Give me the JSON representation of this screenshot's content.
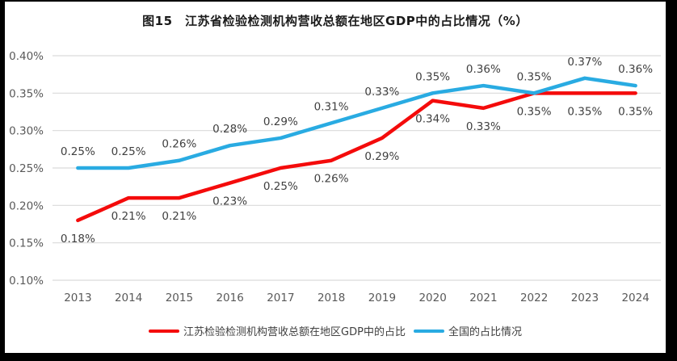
{
  "frame": {
    "border_color": "#000000",
    "panel_background": "#ffffff"
  },
  "chart_data": {
    "type": "line",
    "title": "图15　江苏省检验检测机构营收总额在地区GDP中的占比情况（%）",
    "categories": [
      "2013",
      "2014",
      "2015",
      "2016",
      "2017",
      "2018",
      "2019",
      "2020",
      "2021",
      "2022",
      "2023",
      "2024"
    ],
    "series": [
      {
        "name": "江苏检验检测机构营收总额在地区GDP中的占比",
        "color": "#f40b0b",
        "values": [
          0.18,
          0.21,
          0.21,
          0.23,
          0.25,
          0.26,
          0.29,
          0.34,
          0.33,
          0.35,
          0.35,
          0.35
        ],
        "labels": [
          "0.18%",
          "0.21%",
          "0.21%",
          "0.23%",
          "0.25%",
          "0.26%",
          "0.29%",
          "0.34%",
          "0.33%",
          "0.35%",
          "0.35%",
          "0.35%"
        ],
        "label_position": "below"
      },
      {
        "name": "全国的占比情况",
        "color": "#29abe2",
        "values": [
          0.25,
          0.25,
          0.26,
          0.28,
          0.29,
          0.31,
          0.33,
          0.35,
          0.36,
          0.35,
          0.37,
          0.36
        ],
        "labels": [
          "0.25%",
          "0.25%",
          "0.26%",
          "0.28%",
          "0.29%",
          "0.31%",
          "0.33%",
          "0.35%",
          "0.36%",
          "0.35%",
          "0.37%",
          "0.36%"
        ],
        "label_position": "above"
      }
    ],
    "xlabel": "",
    "ylabel": "",
    "ylim": [
      0.1,
      0.4
    ],
    "yticks": [
      "0.40%",
      "0.35%",
      "0.30%",
      "0.25%",
      "0.20%",
      "0.15%",
      "0.10%"
    ],
    "ytick_values": [
      0.4,
      0.35,
      0.3,
      0.25,
      0.2,
      0.15,
      0.1
    ],
    "grid": true,
    "gridline_color": "#d9d9d9",
    "axis_text_color": "#595959",
    "data_label_color": "#3f3f3f",
    "legend_position": "bottom"
  }
}
